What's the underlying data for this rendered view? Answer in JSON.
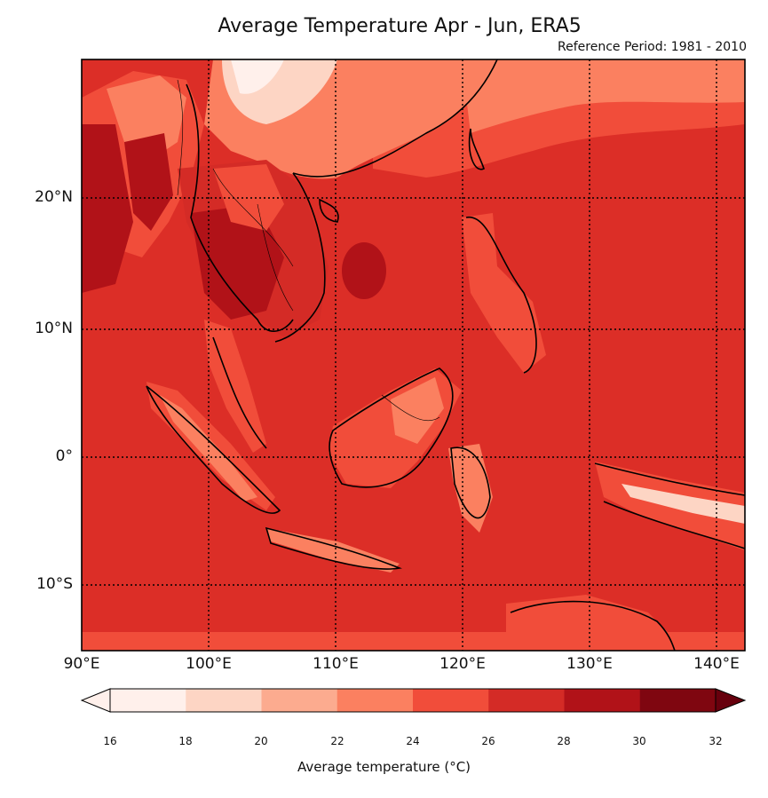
{
  "title": "Average Temperature Apr - Jun, ERA5",
  "subtitle": "Reference Period: 1981 - 2010",
  "latitude_ticks": [
    "20°N",
    "10°N",
    "0°",
    "10°S"
  ],
  "longitude_ticks": [
    "90°E",
    "100°E",
    "110°E",
    "120°E",
    "130°E",
    "140°E"
  ],
  "colorbar": {
    "label": "Average temperature (°C)",
    "ticks": [
      "16",
      "18",
      "20",
      "22",
      "24",
      "26",
      "28",
      "30",
      "32"
    ],
    "colors": [
      "#fff0eb",
      "#fdd5c4",
      "#fcab8f",
      "#fb8060",
      "#f14d3a",
      "#d42b26",
      "#b11218",
      "#7f0610",
      "#67000d"
    ]
  },
  "map": {
    "extent": {
      "lon_min": 90,
      "lon_max": 142,
      "lat_min": -15,
      "lat_max": 31
    },
    "background_color": "#dc2e27"
  }
}
